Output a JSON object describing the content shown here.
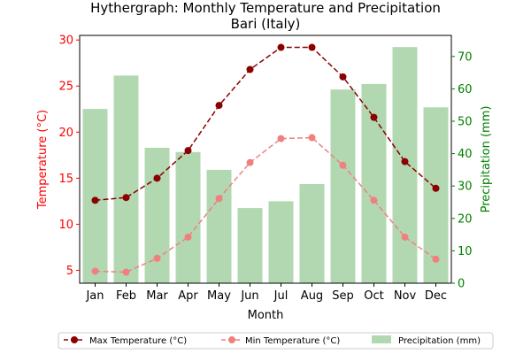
{
  "chart_data": {
    "type": "line",
    "title_line1": "Hythergraph: Monthly Temperature and Precipitation",
    "title_line2": "Bari (Italy)",
    "xlabel": "Month",
    "ylabel_left": "Temperature (°C)",
    "ylabel_right": "Precipitation (mm)",
    "categories": [
      "Jan",
      "Feb",
      "Mar",
      "Apr",
      "May",
      "Jun",
      "Jul",
      "Aug",
      "Sep",
      "Oct",
      "Nov",
      "Dec"
    ],
    "y_left_lim": [
      3.6,
      30.5
    ],
    "y_left_ticks": [
      5,
      10,
      15,
      20,
      25,
      30
    ],
    "y_right_lim": [
      0,
      76.5
    ],
    "y_right_ticks": [
      0,
      10,
      20,
      30,
      40,
      50,
      60,
      70
    ],
    "series": [
      {
        "name": "Max Temperature (°C)",
        "kind": "line",
        "axis": "left",
        "color": "#8b0000",
        "values": [
          12.6,
          12.9,
          15.0,
          18.0,
          22.9,
          26.8,
          29.2,
          29.2,
          26.0,
          21.6,
          16.8,
          13.9
        ]
      },
      {
        "name": "Min Temperature (°C)",
        "kind": "line",
        "axis": "left",
        "color": "#f08080",
        "values": [
          4.9,
          4.8,
          6.3,
          8.6,
          12.8,
          16.7,
          19.3,
          19.4,
          16.4,
          12.6,
          8.6,
          6.2
        ]
      },
      {
        "name": "Precipitation (mm)",
        "kind": "bar",
        "axis": "right",
        "color": "#b2d8b2",
        "values": [
          53.8,
          64.1,
          41.8,
          40.5,
          35.0,
          23.2,
          25.3,
          30.6,
          59.8,
          61.5,
          72.9,
          54.3
        ]
      }
    ],
    "left_axis_color": "#ff0000",
    "right_axis_color": "#008000",
    "legend_position": "bottom-center",
    "grid": false
  }
}
